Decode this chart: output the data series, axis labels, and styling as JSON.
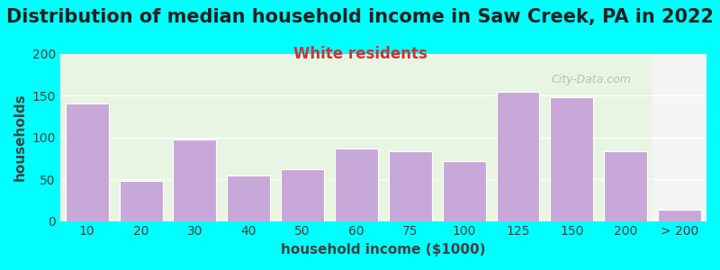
{
  "title": "Distribution of median household income in Saw Creek, PA in 2022",
  "subtitle": "White residents",
  "xlabel": "household income ($1000)",
  "ylabel": "households",
  "background_color": "#00FFFF",
  "plot_bg_color_left": "#e8f5e2",
  "plot_bg_color_right": "#f5f5f5",
  "bar_color": "#c8a8d8",
  "bar_edge_color": "#ffffff",
  "categories": [
    "10",
    "20",
    "30",
    "40",
    "50",
    "60",
    "75",
    "100",
    "125",
    "150",
    "200",
    "> 200"
  ],
  "values": [
    140,
    48,
    97,
    54,
    62,
    87,
    83,
    72,
    154,
    148,
    83,
    13
  ],
  "ylim": [
    0,
    200
  ],
  "yticks": [
    0,
    50,
    100,
    150,
    200
  ],
  "title_fontsize": 15,
  "subtitle_fontsize": 12,
  "axis_label_fontsize": 11,
  "tick_fontsize": 10,
  "watermark": "City-Data.com",
  "subtitle_color": "#cc3333",
  "title_color": "#202020",
  "tick_color": "#404040"
}
